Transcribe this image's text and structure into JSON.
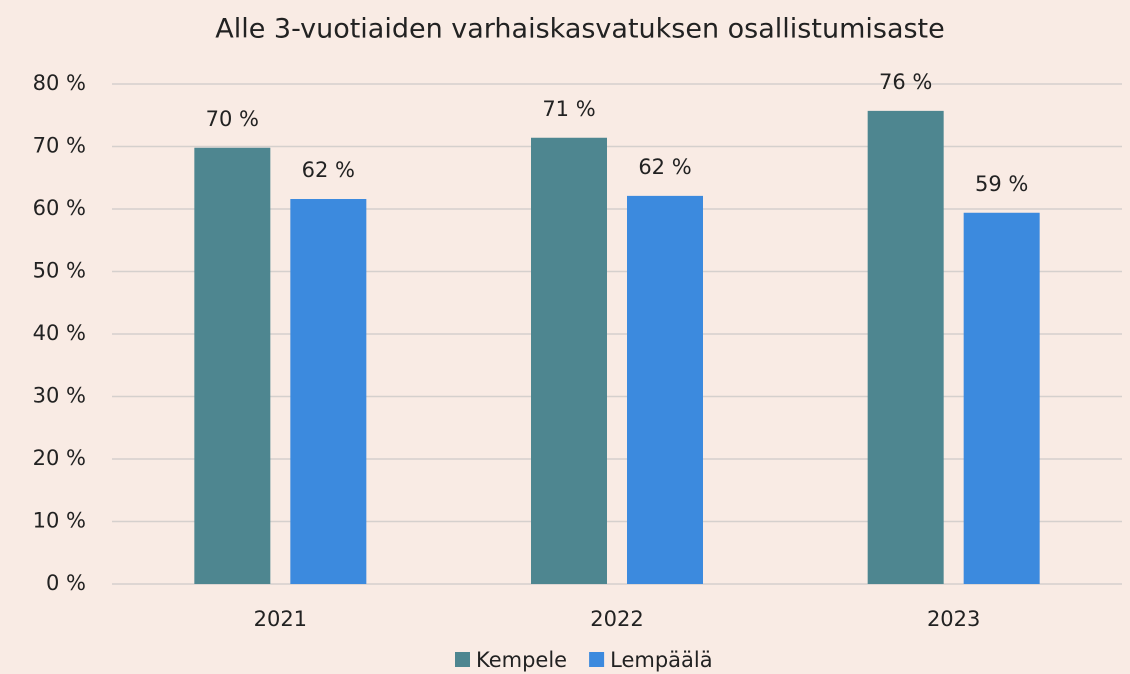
{
  "chart_data": {
    "type": "bar",
    "title": "Alle 3-vuotiaiden varhaiskasvatuksen osallistumisaste",
    "categories": [
      "2021",
      "2022",
      "2023"
    ],
    "series": [
      {
        "name": "Kempele",
        "color": "#4e8690",
        "values": [
          69.8,
          71.4,
          75.7
        ],
        "value_labels": [
          "70 %",
          "71 %",
          "76 %"
        ]
      },
      {
        "name": "Lempäälä",
        "color": "#3c8ade",
        "values": [
          61.6,
          62.1,
          59.4
        ],
        "value_labels": [
          "62 %",
          "62 %",
          "59 %"
        ]
      }
    ],
    "ylim": [
      0,
      80
    ],
    "yticks": [
      {
        "value": 0,
        "label": "0 %"
      },
      {
        "value": 10,
        "label": "10 %"
      },
      {
        "value": 20,
        "label": "20 %"
      },
      {
        "value": 30,
        "label": "30 %"
      },
      {
        "value": 40,
        "label": "40 %"
      },
      {
        "value": 50,
        "label": "50 %"
      },
      {
        "value": 60,
        "label": "60 %"
      },
      {
        "value": 70,
        "label": "70 %"
      },
      {
        "value": 80,
        "label": "80 %"
      }
    ],
    "grid": true,
    "legend": "bottom"
  }
}
